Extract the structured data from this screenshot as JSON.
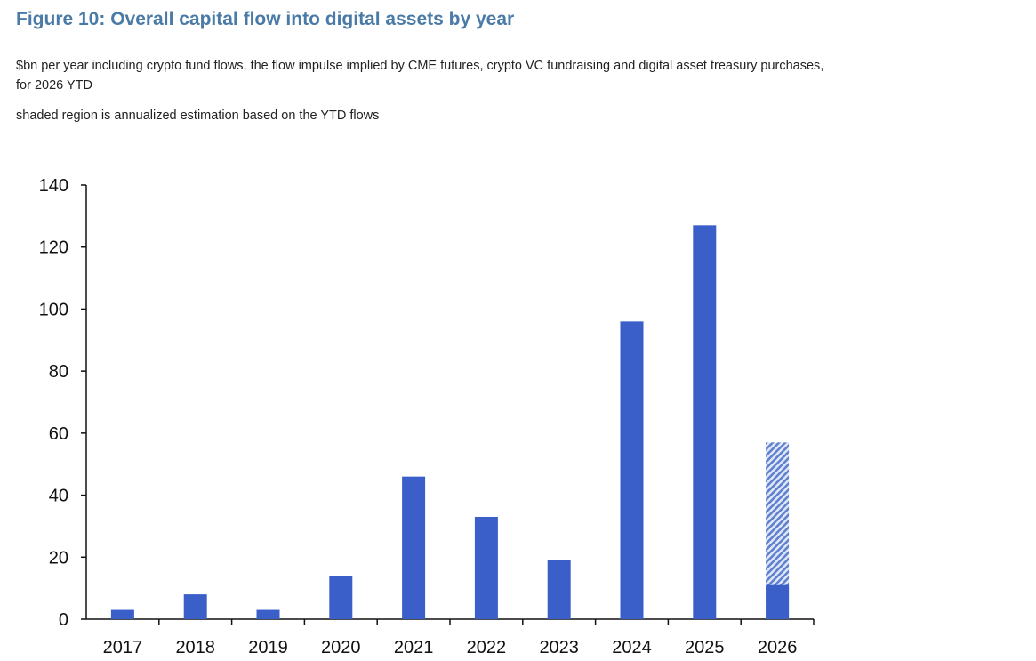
{
  "chart_data": {
    "type": "bar",
    "title": "Figure 10: Overall capital flow into digital assets by year",
    "subtitle": [
      "$bn per year including crypto fund flows, the flow impulse implied by CME futures, crypto VC fundraising and digital asset treasury purchases,",
      "for 2026 YTD",
      "shaded region is annualized estimation based on the YTD flows"
    ],
    "xlabel": "",
    "ylabel": "",
    "categories": [
      "2017",
      "2018",
      "2019",
      "2020",
      "2021",
      "2022",
      "2023",
      "2024",
      "2025",
      "2026"
    ],
    "values": [
      3,
      8,
      3,
      14,
      46,
      33,
      19,
      96,
      127,
      11
    ],
    "annualized_estimate": {
      "category": "2026",
      "value": 57
    },
    "ylim": [
      0,
      140
    ],
    "yticks": [
      "0",
      "20",
      "40",
      "60",
      "80",
      "100",
      "120",
      "140"
    ],
    "grid": false,
    "colors": {
      "bar": "#3a5fc8",
      "shaded": "#9db3e3"
    }
  }
}
